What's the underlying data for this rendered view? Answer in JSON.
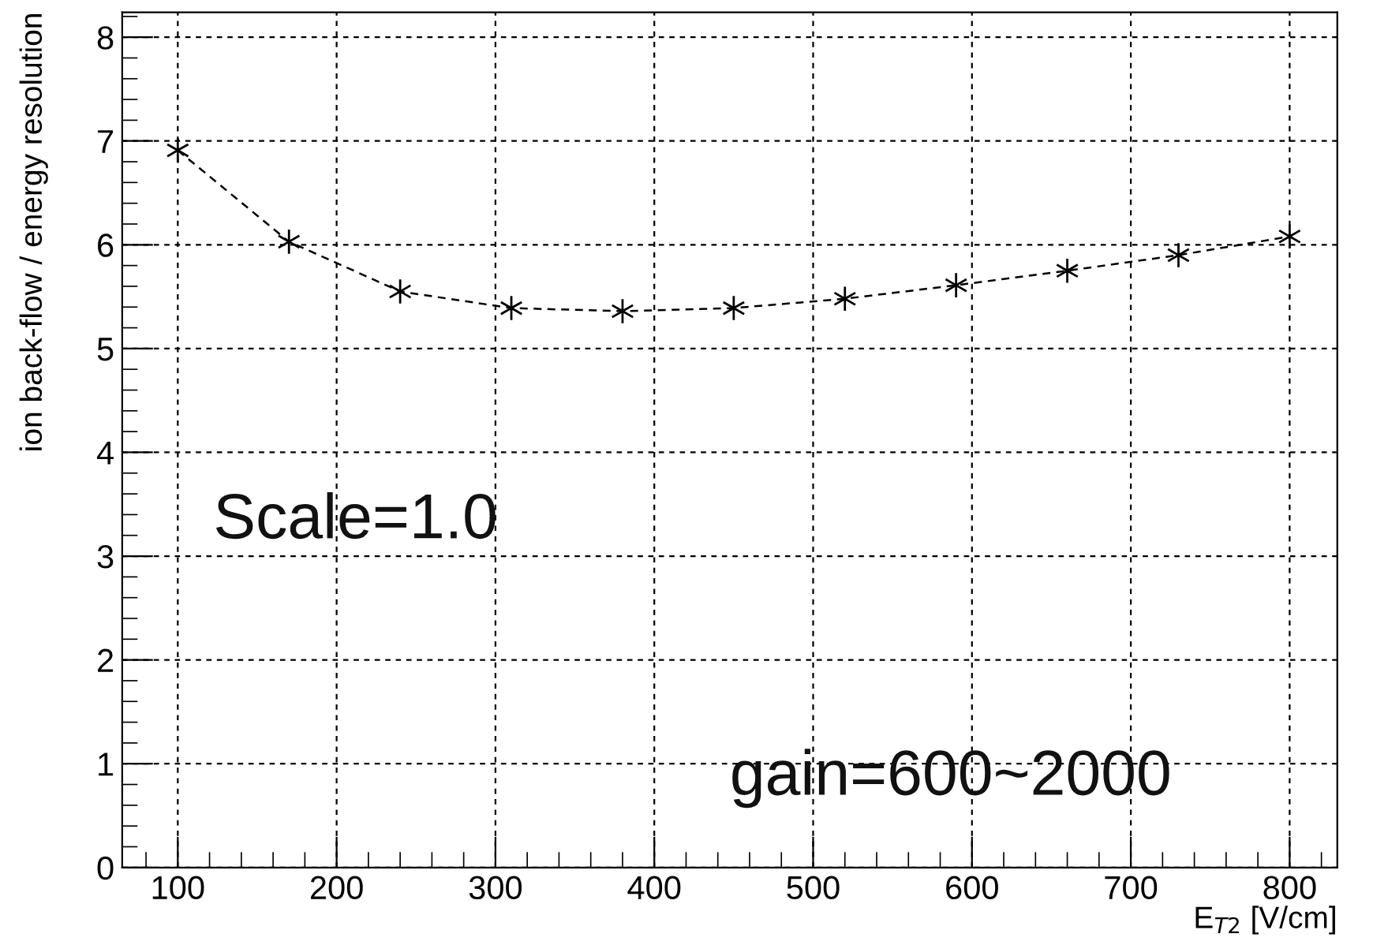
{
  "chart_data": {
    "type": "line",
    "xlabel": "E$_{T2}$ [V/cm]",
    "ylabel": "ion back-flow / energy resolution",
    "x": [
      100,
      170,
      240,
      310,
      380,
      450,
      520,
      590,
      660,
      730,
      800
    ],
    "series": [
      {
        "color": "#000000",
        "values": [
          6.91,
          6.03,
          5.55,
          5.39,
          5.36,
          5.39,
          5.48,
          5.61,
          5.75,
          5.9,
          6.08
        ]
      }
    ],
    "xlim": [
      65,
      830
    ],
    "ylim": [
      0,
      8.24
    ],
    "xticks": [
      100,
      200,
      300,
      400,
      500,
      600,
      700,
      800
    ],
    "yticks": [
      0,
      1,
      2,
      3,
      4,
      5,
      6,
      7,
      8
    ],
    "grid": true,
    "marker": "cross",
    "line_style": "dashed",
    "legend": false,
    "annotations": [
      "Scale=1.0",
      "gain=600~2000"
    ]
  }
}
